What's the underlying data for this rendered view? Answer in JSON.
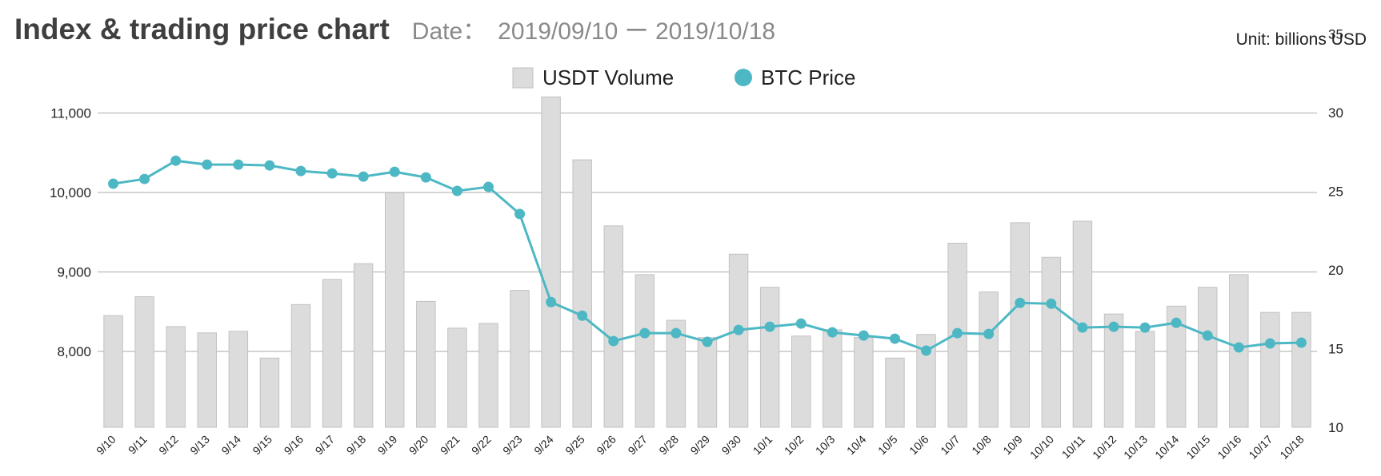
{
  "header": {
    "title": "Index & trading price chart",
    "date_label": "Date：",
    "date_range": "2019/09/10 ー 2019/10/18",
    "unit": "Unit: billions USD"
  },
  "colors": {
    "bar": "#dcdcdc",
    "bar_stroke": "#c2c2c2",
    "line": "#4db8c4",
    "grid": "#bbbbbb"
  },
  "chart_data": {
    "type": "bar",
    "title": "Index & trading price chart",
    "legend_position": "top-center",
    "grid": true,
    "categories": [
      "9/10",
      "9/11",
      "9/12",
      "9/13",
      "9/14",
      "9/15",
      "9/16",
      "9/17",
      "9/18",
      "9/19",
      "9/20",
      "9/21",
      "9/22",
      "9/23",
      "9/24",
      "9/25",
      "9/26",
      "9/27",
      "9/28",
      "9/29",
      "9/30",
      "10/1",
      "10/2",
      "10/3",
      "10/4",
      "10/5",
      "10/6",
      "10/7",
      "10/8",
      "10/9",
      "10/10",
      "10/11",
      "10/12",
      "10/13",
      "10/14",
      "10/15",
      "10/16",
      "10/17",
      "10/18"
    ],
    "series": [
      {
        "name": "USDT Volume",
        "type": "bar",
        "axis": "right",
        "values": [
          17.1,
          18.3,
          16.4,
          16.0,
          16.1,
          14.4,
          17.8,
          19.4,
          20.4,
          24.9,
          18.0,
          16.3,
          16.6,
          18.7,
          31.0,
          27.0,
          22.8,
          19.7,
          16.8,
          15.7,
          21.0,
          18.9,
          15.8,
          16.2,
          15.7,
          14.4,
          15.9,
          21.7,
          18.6,
          23.0,
          20.8,
          23.1,
          17.2,
          16.1,
          17.7,
          18.9,
          19.7,
          17.3,
          17.3
        ]
      },
      {
        "name": "BTC Price",
        "type": "line",
        "axis": "left",
        "values": [
          10110,
          10170,
          10400,
          10350,
          10350,
          10340,
          10270,
          10240,
          10200,
          10260,
          10190,
          10020,
          10070,
          9730,
          8620,
          8450,
          8130,
          8230,
          8230,
          8120,
          8270,
          8310,
          8350,
          8240,
          8200,
          8160,
          8010,
          8230,
          8220,
          8610,
          8600,
          8300,
          8310,
          8300,
          8360,
          8200,
          8050,
          8100,
          8110
        ]
      }
    ],
    "yleft": {
      "ticks": [
        8000,
        9000,
        10000,
        11000
      ],
      "tick_labels": [
        "8,000",
        "9,000",
        "10,000",
        "11,000"
      ]
    },
    "yright": {
      "ticks": [
        10,
        15,
        20,
        25,
        30,
        35
      ],
      "tick_labels": [
        "10",
        "15",
        "20",
        "25",
        "30",
        "35"
      ]
    }
  }
}
